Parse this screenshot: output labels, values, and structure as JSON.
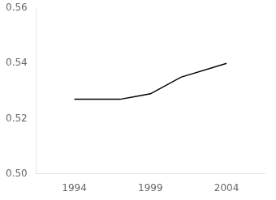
{
  "chart_data": {
    "type": "line",
    "x": [
      1994,
      1996,
      1997,
      1998,
      1999,
      2001,
      2004
    ],
    "values": [
      0.527,
      0.527,
      0.527,
      0.528,
      0.529,
      0.535,
      0.54
    ],
    "color": "#000000",
    "xlim": [
      1991.5,
      2006.5
    ],
    "ylim": [
      0.5,
      0.56
    ],
    "xticks": [
      1994,
      1999,
      2004
    ],
    "yticks": [
      {
        "value": 0.5,
        "label": "0.50"
      },
      0.52,
      0.54,
      0.56
    ],
    "grid": false
  }
}
